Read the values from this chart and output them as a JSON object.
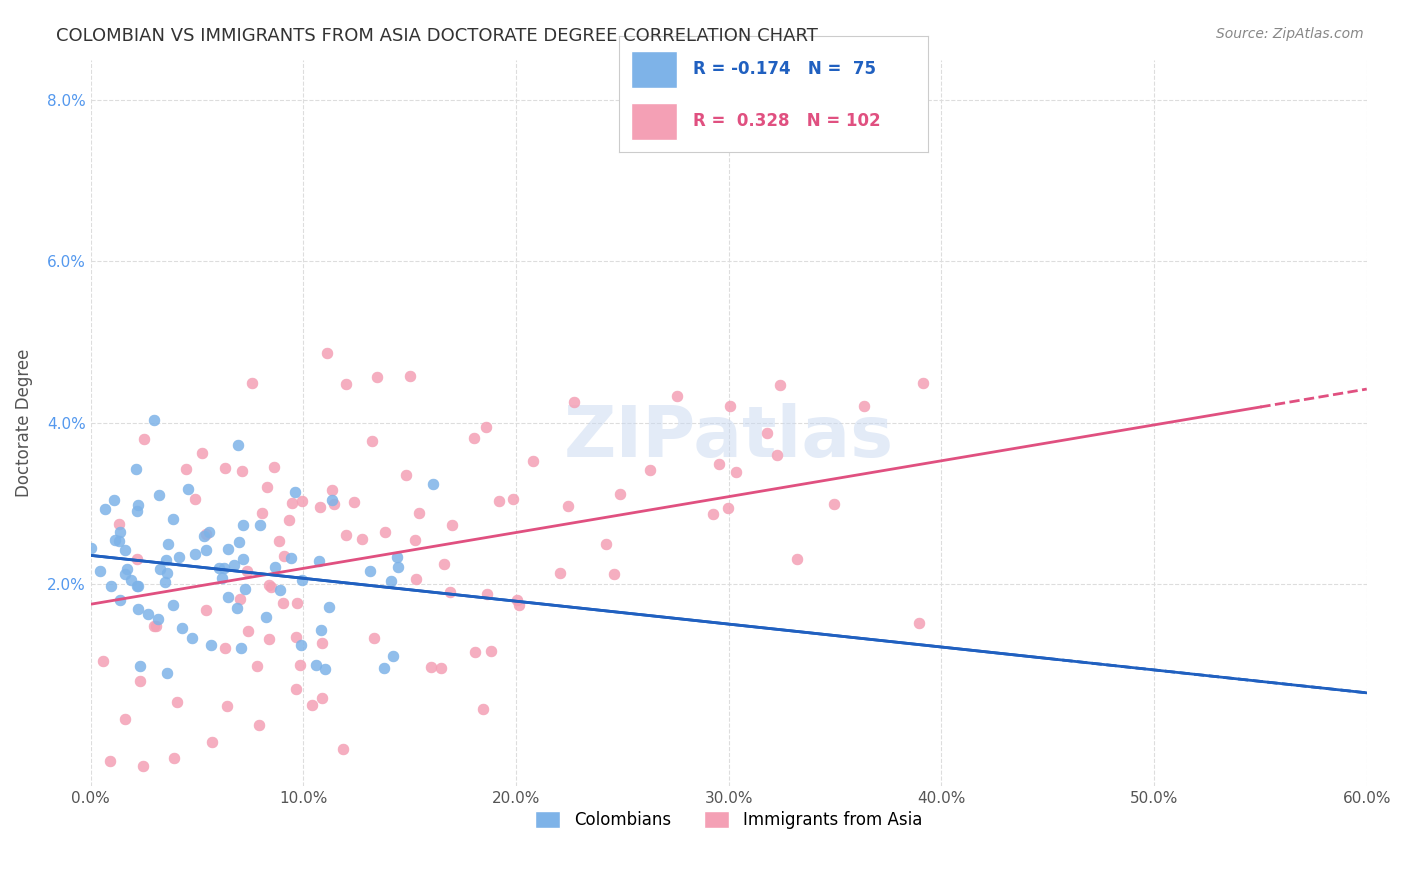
{
  "title": "COLOMBIAN VS IMMIGRANTS FROM ASIA DOCTORATE DEGREE CORRELATION CHART",
  "source": "Source: ZipAtlas.com",
  "xlabel": "",
  "ylabel": "Doctorate Degree",
  "xlim": [
    0.0,
    0.6
  ],
  "ylim": [
    -0.005,
    0.085
  ],
  "xtick_labels": [
    "0.0%",
    "10.0%",
    "20.0%",
    "30.0%",
    "40.0%",
    "50.0%",
    "60.0%"
  ],
  "xtick_vals": [
    0.0,
    0.1,
    0.2,
    0.3,
    0.4,
    0.5,
    0.6
  ],
  "ytick_labels": [
    "2.0%",
    "4.0%",
    "6.0%",
    "8.0%"
  ],
  "ytick_vals": [
    0.02,
    0.04,
    0.06,
    0.08
  ],
  "legend_r_blue": "R = -0.174",
  "legend_n_blue": "N =  75",
  "legend_r_pink": "R =  0.328",
  "legend_n_pink": "N = 102",
  "blue_color": "#7EB3E8",
  "pink_color": "#F4A0B5",
  "blue_line_color": "#2060C0",
  "pink_line_color": "#E05080",
  "watermark": "ZIPatlas",
  "blue_R": -0.174,
  "blue_N": 75,
  "pink_R": 0.328,
  "pink_N": 102,
  "blue_scatter_seed": 42,
  "pink_scatter_seed": 7,
  "background_color": "#FFFFFF",
  "grid_color": "#DDDDDD"
}
